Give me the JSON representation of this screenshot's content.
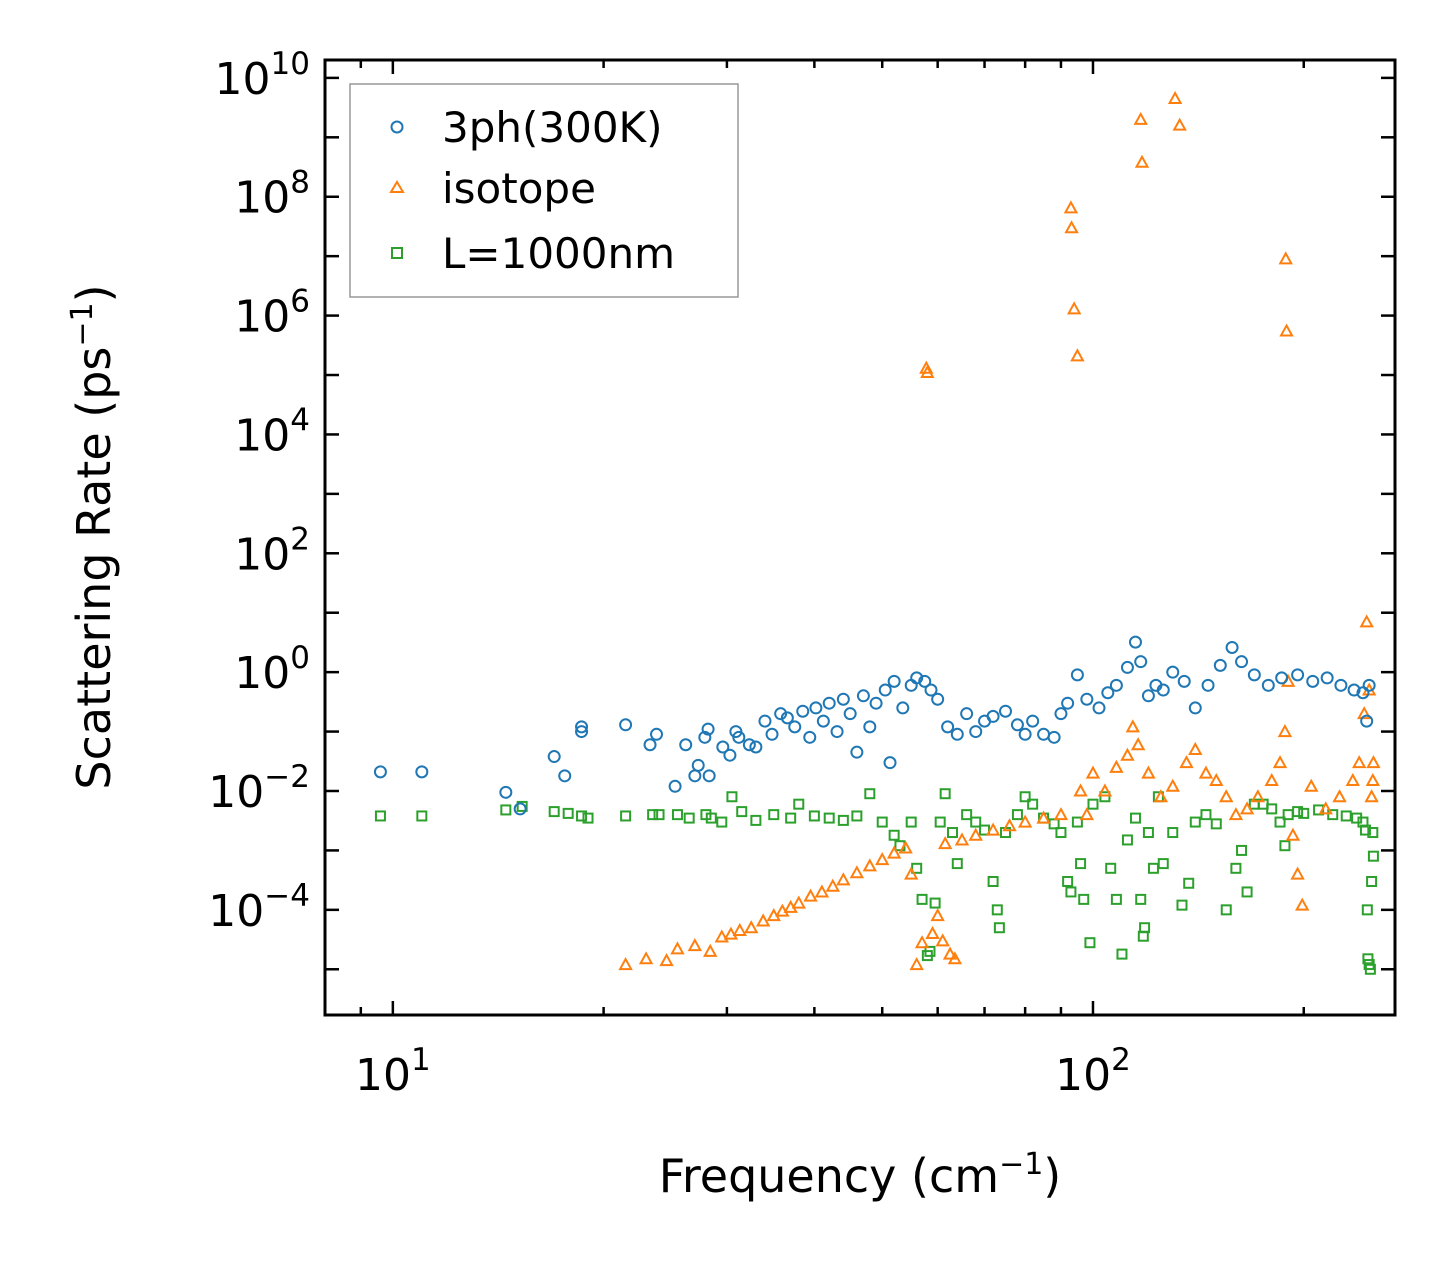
{
  "chart_data": {
    "type": "scatter",
    "xlabel": "Frequency (cm",
    "xlabel_sup": "−1",
    "xlabel_tail": ")",
    "ylabel": "Scattering Rate (ps",
    "ylabel_sup": "−1",
    "ylabel_tail": ")",
    "xscale": "log",
    "yscale": "log",
    "xlim": [
      8.0,
      270
    ],
    "ylim": [
      1.7e-06,
      20000000000.0
    ],
    "x_ticks": [
      {
        "value": 10,
        "base": "10",
        "exp": "1"
      },
      {
        "value": 100,
        "base": "10",
        "exp": "2"
      }
    ],
    "y_ticks": [
      {
        "value": 0.0001,
        "base": "10",
        "exp": "−4"
      },
      {
        "value": 0.01,
        "base": "10",
        "exp": "−2"
      },
      {
        "value": 1,
        "base": "10",
        "exp": "0"
      },
      {
        "value": 100.0,
        "base": "10",
        "exp": "2"
      },
      {
        "value": 10000.0,
        "base": "10",
        "exp": "4"
      },
      {
        "value": 1000000.0,
        "base": "10",
        "exp": "6"
      },
      {
        "value": 100000000.0,
        "base": "10",
        "exp": "8"
      },
      {
        "value": 10000000000.0,
        "base": "10",
        "exp": "10"
      }
    ],
    "legend_position": "top-left",
    "series": [
      {
        "name": "3ph(300K)",
        "color": "#1f77b4",
        "marker": "circle",
        "points": [
          [
            9.6,
            0.021
          ],
          [
            11.0,
            0.021
          ],
          [
            14.5,
            0.0095
          ],
          [
            15.2,
            0.005
          ],
          [
            17.0,
            0.038
          ],
          [
            17.6,
            0.018
          ],
          [
            18.6,
            0.12
          ],
          [
            18.6,
            0.1
          ],
          [
            21.5,
            0.13
          ],
          [
            23.3,
            0.06
          ],
          [
            23.8,
            0.09
          ],
          [
            25.3,
            0.012
          ],
          [
            26.2,
            0.06
          ],
          [
            27.0,
            0.018
          ],
          [
            27.3,
            0.027
          ],
          [
            27.9,
            0.08
          ],
          [
            28.2,
            0.11
          ],
          [
            28.3,
            0.018
          ],
          [
            29.6,
            0.055
          ],
          [
            30.3,
            0.04
          ],
          [
            30.9,
            0.1
          ],
          [
            31.2,
            0.08
          ],
          [
            32.3,
            0.06
          ],
          [
            33.0,
            0.055
          ],
          [
            34.0,
            0.15
          ],
          [
            34.8,
            0.09
          ],
          [
            35.8,
            0.2
          ],
          [
            36.6,
            0.17
          ],
          [
            37.5,
            0.12
          ],
          [
            38.5,
            0.22
          ],
          [
            39.4,
            0.08
          ],
          [
            40.2,
            0.25
          ],
          [
            41.2,
            0.15
          ],
          [
            42.0,
            0.3
          ],
          [
            43.1,
            0.1
          ],
          [
            44.0,
            0.35
          ],
          [
            45.0,
            0.2
          ],
          [
            46.0,
            0.045
          ],
          [
            47.0,
            0.4
          ],
          [
            48.0,
            0.12
          ],
          [
            49.0,
            0.3
          ],
          [
            50.5,
            0.5
          ],
          [
            51.3,
            0.03
          ],
          [
            52.0,
            0.7
          ],
          [
            53.5,
            0.25
          ],
          [
            55.0,
            0.6
          ],
          [
            56.0,
            0.8
          ],
          [
            57.5,
            0.7
          ],
          [
            58.7,
            0.5
          ],
          [
            60.0,
            0.35
          ],
          [
            62.0,
            0.12
          ],
          [
            64.0,
            0.09
          ],
          [
            66.0,
            0.2
          ],
          [
            68.0,
            0.1
          ],
          [
            70.0,
            0.15
          ],
          [
            72.0,
            0.18
          ],
          [
            75.0,
            0.22
          ],
          [
            78.0,
            0.13
          ],
          [
            80.0,
            0.09
          ],
          [
            82.0,
            0.15
          ],
          [
            85.0,
            0.09
          ],
          [
            88.0,
            0.08
          ],
          [
            90.0,
            0.2
          ],
          [
            92.0,
            0.3
          ],
          [
            95.0,
            0.9
          ],
          [
            98.0,
            0.35
          ],
          [
            102.0,
            0.25
          ],
          [
            105.0,
            0.45
          ],
          [
            108.0,
            0.6
          ],
          [
            112.0,
            1.2
          ],
          [
            115.0,
            3.2
          ],
          [
            117.0,
            1.5
          ],
          [
            120.0,
            0.4
          ],
          [
            123.0,
            0.6
          ],
          [
            126.0,
            0.5
          ],
          [
            130.0,
            1.0
          ],
          [
            135.0,
            0.7
          ],
          [
            140.0,
            0.25
          ],
          [
            146.0,
            0.6
          ],
          [
            152.0,
            1.3
          ],
          [
            158.0,
            2.6
          ],
          [
            163.0,
            1.5
          ],
          [
            170.0,
            0.9
          ],
          [
            178.0,
            0.6
          ],
          [
            186.0,
            0.8
          ],
          [
            196.0,
            0.9
          ],
          [
            206.0,
            0.7
          ],
          [
            216.0,
            0.8
          ],
          [
            226.0,
            0.6
          ],
          [
            236.0,
            0.5
          ],
          [
            243.0,
            0.45
          ],
          [
            246.0,
            0.15
          ],
          [
            248.0,
            0.6
          ]
        ]
      },
      {
        "name": "isotope",
        "color": "#ff7f0e",
        "marker": "triangle",
        "points": [
          [
            21.5,
            1.2e-05
          ],
          [
            23.0,
            1.5e-05
          ],
          [
            24.6,
            1.4e-05
          ],
          [
            25.5,
            2.2e-05
          ],
          [
            27.0,
            2.5e-05
          ],
          [
            28.4,
            2e-05
          ],
          [
            29.5,
            3.5e-05
          ],
          [
            30.4,
            3.9e-05
          ],
          [
            31.3,
            4.5e-05
          ],
          [
            32.5,
            5e-05
          ],
          [
            33.8,
            6.5e-05
          ],
          [
            35.0,
            8e-05
          ],
          [
            36.0,
            9.5e-05
          ],
          [
            37.0,
            0.00011
          ],
          [
            38.0,
            0.00013
          ],
          [
            39.5,
            0.00017
          ],
          [
            41.0,
            0.0002
          ],
          [
            42.5,
            0.00025
          ],
          [
            44.0,
            0.00032
          ],
          [
            46.0,
            0.00042
          ],
          [
            48.0,
            0.00055
          ],
          [
            50.0,
            0.0007
          ],
          [
            52.0,
            0.0009
          ],
          [
            54.0,
            0.0011
          ],
          [
            55.0,
            0.0004
          ],
          [
            56.0,
            1.2e-05
          ],
          [
            57.0,
            2.8e-05
          ],
          [
            57.8,
            130000.0
          ],
          [
            58.0,
            110000.0
          ],
          [
            59.0,
            4e-05
          ],
          [
            60.0,
            8e-05
          ],
          [
            61.0,
            3e-05
          ],
          [
            61.5,
            0.0013
          ],
          [
            62.5,
            1.8e-05
          ],
          [
            63.5,
            1.5e-05
          ],
          [
            65.0,
            0.0015
          ],
          [
            68.0,
            0.0018
          ],
          [
            72.0,
            0.0022
          ],
          [
            76.0,
            0.0026
          ],
          [
            80.0,
            0.003
          ],
          [
            85.0,
            0.0035
          ],
          [
            90.0,
            0.004
          ],
          [
            93.0,
            65000000.0
          ],
          [
            93.2,
            30000000.0
          ],
          [
            94.0,
            1300000.0
          ],
          [
            95.0,
            210000.0
          ],
          [
            96.0,
            0.01
          ],
          [
            98.0,
            0.004
          ],
          [
            100.0,
            0.02
          ],
          [
            104.0,
            0.01
          ],
          [
            108.0,
            0.025
          ],
          [
            112.0,
            0.04
          ],
          [
            114.0,
            0.12
          ],
          [
            116.0,
            0.06
          ],
          [
            117.0,
            2000000000.0
          ],
          [
            117.5,
            380000000.0
          ],
          [
            120.0,
            0.02
          ],
          [
            125.0,
            0.008
          ],
          [
            130.0,
            0.012
          ],
          [
            131.0,
            4500000000.0
          ],
          [
            133.0,
            1600000000.0
          ],
          [
            136.0,
            0.03
          ],
          [
            140.0,
            0.05
          ],
          [
            145.0,
            0.02
          ],
          [
            150.0,
            0.015
          ],
          [
            155.0,
            0.008
          ],
          [
            160.0,
            0.004
          ],
          [
            166.0,
            0.005
          ],
          [
            172.0,
            0.008
          ],
          [
            180.0,
            0.015
          ],
          [
            185.0,
            0.03
          ],
          [
            188.0,
            0.1
          ],
          [
            188.5,
            9000000.0
          ],
          [
            189.0,
            550000.0
          ],
          [
            190.0,
            0.7
          ],
          [
            193.0,
            0.0018
          ],
          [
            196.0,
            0.0004
          ],
          [
            199.0,
            0.00012
          ],
          [
            205.0,
            0.012
          ],
          [
            215.0,
            0.005
          ],
          [
            225.0,
            0.008
          ],
          [
            235.0,
            0.015
          ],
          [
            240.0,
            0.03
          ],
          [
            244.0,
            0.2
          ],
          [
            246.0,
            7.0
          ],
          [
            248.0,
            0.5
          ],
          [
            250.0,
            0.008
          ],
          [
            251.0,
            0.015
          ],
          [
            251.5,
            0.03
          ]
        ]
      },
      {
        "name": "L=1000nm",
        "color": "#2ca02c",
        "marker": "square",
        "points": [
          [
            9.6,
            0.0038
          ],
          [
            11.0,
            0.0038
          ],
          [
            14.5,
            0.0048
          ],
          [
            15.3,
            0.0055
          ],
          [
            17.0,
            0.0045
          ],
          [
            17.8,
            0.0042
          ],
          [
            18.6,
            0.0038
          ],
          [
            19.0,
            0.0035
          ],
          [
            21.5,
            0.0038
          ],
          [
            23.5,
            0.004
          ],
          [
            24.0,
            0.004
          ],
          [
            25.5,
            0.004
          ],
          [
            26.5,
            0.0035
          ],
          [
            28.0,
            0.004
          ],
          [
            28.5,
            0.0035
          ],
          [
            29.5,
            0.003
          ],
          [
            30.5,
            0.008
          ],
          [
            31.5,
            0.0045
          ],
          [
            33.0,
            0.0032
          ],
          [
            35.0,
            0.004
          ],
          [
            37.0,
            0.0035
          ],
          [
            38.0,
            0.006
          ],
          [
            40.0,
            0.0038
          ],
          [
            42.0,
            0.0035
          ],
          [
            44.0,
            0.0032
          ],
          [
            46.0,
            0.0038
          ],
          [
            48.0,
            0.009
          ],
          [
            50.0,
            0.003
          ],
          [
            52.0,
            0.0018
          ],
          [
            53.0,
            0.0012
          ],
          [
            55.0,
            0.003
          ],
          [
            56.0,
            0.0005
          ],
          [
            57.0,
            0.00015
          ],
          [
            58.0,
            1.7e-05
          ],
          [
            58.5,
            2e-05
          ],
          [
            59.5,
            0.00013
          ],
          [
            60.5,
            0.003
          ],
          [
            61.5,
            0.009
          ],
          [
            63.0,
            0.002
          ],
          [
            64.0,
            0.0006
          ],
          [
            66.0,
            0.004
          ],
          [
            68.0,
            0.003
          ],
          [
            70.0,
            0.0022
          ],
          [
            72.0,
            0.0003
          ],
          [
            73.0,
            0.0001
          ],
          [
            73.5,
            5e-05
          ],
          [
            75.0,
            0.002
          ],
          [
            78.0,
            0.004
          ],
          [
            80.0,
            0.008
          ],
          [
            82.0,
            0.006
          ],
          [
            85.0,
            0.0035
          ],
          [
            88.0,
            0.0028
          ],
          [
            90.0,
            0.002
          ],
          [
            92.0,
            0.0003
          ],
          [
            93.0,
            0.0002
          ],
          [
            95.0,
            0.003
          ],
          [
            96.0,
            0.0006
          ],
          [
            97.0,
            0.00015
          ],
          [
            99.0,
            2.8e-05
          ],
          [
            100.0,
            0.006
          ],
          [
            104.0,
            0.008
          ],
          [
            106.0,
            0.0005
          ],
          [
            108.0,
            0.00015
          ],
          [
            110.0,
            1.8e-05
          ],
          [
            112.0,
            0.0015
          ],
          [
            115.0,
            0.0035
          ],
          [
            117.0,
            0.00015
          ],
          [
            118.0,
            3.6e-05
          ],
          [
            118.5,
            5e-05
          ],
          [
            120.0,
            0.002
          ],
          [
            122.0,
            0.0005
          ],
          [
            124.0,
            0.008
          ],
          [
            126.0,
            0.0006
          ],
          [
            130.0,
            0.002
          ],
          [
            134.0,
            0.00012
          ],
          [
            137.0,
            0.00028
          ],
          [
            140.0,
            0.003
          ],
          [
            145.0,
            0.004
          ],
          [
            150.0,
            0.0028
          ],
          [
            155.0,
            0.0001
          ],
          [
            160.0,
            0.0005
          ],
          [
            163.0,
            0.001
          ],
          [
            166.0,
            0.0002
          ],
          [
            170.0,
            0.006
          ],
          [
            175.0,
            0.006
          ],
          [
            180.0,
            0.005
          ],
          [
            185.0,
            0.003
          ],
          [
            188.0,
            0.0012
          ],
          [
            190.0,
            0.004
          ],
          [
            196.0,
            0.0045
          ],
          [
            200.0,
            0.0042
          ],
          [
            210.0,
            0.0048
          ],
          [
            220.0,
            0.004
          ],
          [
            230.0,
            0.0038
          ],
          [
            238.0,
            0.0035
          ],
          [
            243.0,
            0.003
          ],
          [
            245.0,
            0.0022
          ],
          [
            246.5,
            0.0001
          ],
          [
            247.0,
            1.5e-05
          ],
          [
            248.0,
            1.2e-05
          ],
          [
            249.0,
            1e-05
          ],
          [
            250.0,
            0.0003
          ],
          [
            251.0,
            0.002
          ],
          [
            251.5,
            0.0008
          ]
        ]
      }
    ]
  }
}
